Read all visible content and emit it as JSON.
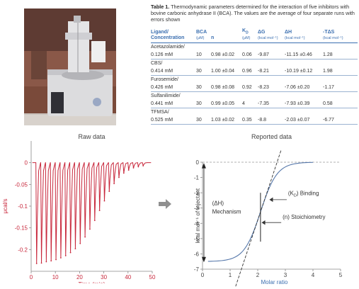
{
  "table": {
    "caption_bold": "Table 1.",
    "caption_text": " Thermodynamic parameters determined for the interaction of five inhibitors with bovine carbonic anhydrase II (BCA). The values are the average of four separate runs with errors shown",
    "headers": [
      {
        "label": "Ligand/ Concentration",
        "unit": ""
      },
      {
        "label": "BCA",
        "unit": "(μM)"
      },
      {
        "label": "n",
        "unit": ""
      },
      {
        "label": "KD",
        "unit": "(μM)"
      },
      {
        "label": "ΔG",
        "unit": "(kcal mol⁻¹)"
      },
      {
        "label": "ΔH",
        "unit": "(kcal mol⁻¹)"
      },
      {
        "label": "-TΔS",
        "unit": "(kcal mol⁻¹)"
      }
    ],
    "rows": [
      {
        "ligand": "Acetazolamide/",
        "conc": "0.126 mM",
        "bca": "10",
        "n": "0.98 ±0.02",
        "kd": "0.06",
        "dg": "-9.87",
        "dh": "-11.15 ±0.46",
        "tds": "1.28"
      },
      {
        "ligand": "CBS/",
        "conc": "0.414 mM",
        "bca": "30",
        "n": "1.00 ±0.04",
        "kd": "0.96",
        "dg": "-8.21",
        "dh": "-10.19 ±0.12",
        "tds": "1.98"
      },
      {
        "ligand": "Furosemide/",
        "conc": "0.426 mM",
        "bca": "30",
        "n": "0.98 ±0.08",
        "kd": "0.92",
        "dg": "-8.23",
        "dh": "-7.06 ±0.20",
        "tds": "-1.17"
      },
      {
        "ligand": "Sulfanilimide/",
        "conc": "0.441 mM",
        "bca": "30",
        "n": "0.99 ±0.05",
        "kd": "4",
        "dg": "-7.35",
        "dh": "-7.93 ±0.39",
        "tds": "0.58"
      },
      {
        "ligand": "TFMSA/",
        "conc": "0.525 mM",
        "bca": "30",
        "n": "1.03 ±0.02",
        "kd": "0.35",
        "dg": "-8.8",
        "dh": "-2.03 ±0.07",
        "tds": "-6.77"
      }
    ]
  },
  "colors": {
    "raw_trace": "#c8283c",
    "fit_curve": "#5577aa",
    "axis_label": "#3b6fb0",
    "arrow": "#909090"
  },
  "icons": {
    "flow_arrow": "right-arrow-icon"
  },
  "chart_data": [
    {
      "type": "line",
      "title": "Raw data",
      "xlabel": "Time (min)",
      "ylabel": "μcal/s",
      "xlim": [
        0,
        50
      ],
      "ylim": [
        -0.25,
        0.05
      ],
      "xticks": [
        "0",
        "10",
        "20",
        "30",
        "40",
        "50"
      ],
      "yticks": [
        "0",
        "-0.05",
        "-0.1",
        "-0.15",
        "-0.2"
      ],
      "baseline": 0,
      "injection_times": [
        2,
        4,
        6,
        8,
        10,
        12,
        14,
        16,
        18,
        20,
        22,
        24,
        26,
        28,
        30,
        32,
        34,
        36,
        38,
        40,
        42,
        44,
        46
      ],
      "peak_minima": [
        -0.232,
        -0.231,
        -0.228,
        -0.226,
        -0.223,
        -0.219,
        -0.214,
        -0.207,
        -0.198,
        -0.186,
        -0.171,
        -0.153,
        -0.133,
        -0.11,
        -0.088,
        -0.066,
        -0.048,
        -0.034,
        -0.024,
        -0.017,
        -0.012,
        -0.009,
        -0.007
      ]
    },
    {
      "type": "line",
      "title": "Reported data",
      "xlabel": "Molar ratio",
      "ylabel": "kcal mol⁻¹ of injectant",
      "xlim": [
        0,
        5
      ],
      "ylim": [
        -7,
        0
      ],
      "xticks": [
        "0",
        "1",
        "2",
        "3",
        "4",
        "5"
      ],
      "yticks": [
        "0",
        "-1",
        "-2",
        "-3",
        "-4",
        "-5",
        "-6",
        "-7"
      ],
      "fit": {
        "dh": -6.5,
        "midpoint": 2.1,
        "width": 0.3
      },
      "annotations": {
        "dh_label": "(ΔH)",
        "dh_sub": "Mechanism",
        "kd_label": "(K",
        "kd_sub": "D",
        "kd_rest": ") Binding",
        "n_label": "(n) Stoichiometry"
      }
    }
  ]
}
